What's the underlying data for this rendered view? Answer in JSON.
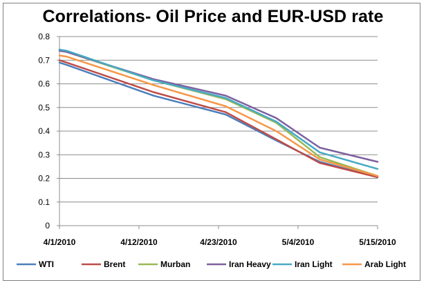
{
  "chart_data": {
    "type": "line",
    "title": "Correlations- Oil Price and EUR-USD rate",
    "xlabel": "",
    "ylabel": "",
    "ylim": [
      0,
      0.8
    ],
    "yticks": [
      "0",
      "0.1",
      "0.2",
      "0.3",
      "0.4",
      "0.5",
      "0.6",
      "0.7",
      "0.8"
    ],
    "x": [
      "2010-04-01",
      "2010-04-02",
      "2010-04-14",
      "2010-04-24",
      "2010-05-01",
      "2010-05-07",
      "2010-05-15"
    ],
    "xlim": [
      "2010-04-01",
      "2010-05-15"
    ],
    "xticks": [
      "4/1/2010",
      "4/12/2010",
      "4/23/2010",
      "5/4/2010",
      "5/15/2010"
    ],
    "grid": "horizontal",
    "legend_position": "bottom",
    "series": [
      {
        "name": "WTI",
        "color": "#4a7ebb",
        "values": [
          0.69,
          0.68,
          0.55,
          0.47,
          0.36,
          0.27,
          0.205
        ]
      },
      {
        "name": "Brent",
        "color": "#be4b48",
        "values": [
          0.7,
          0.69,
          0.565,
          0.48,
          0.365,
          0.265,
          0.205
        ]
      },
      {
        "name": "Murban",
        "color": "#98b954",
        "values": [
          0.745,
          0.735,
          0.615,
          0.535,
          0.435,
          0.29,
          0.21
        ]
      },
      {
        "name": "Iran Heavy",
        "color": "#7d60a0",
        "values": [
          0.74,
          0.735,
          0.62,
          0.55,
          0.455,
          0.33,
          0.27
        ]
      },
      {
        "name": "Iran Light",
        "color": "#46aac5",
        "values": [
          0.745,
          0.74,
          0.615,
          0.54,
          0.44,
          0.31,
          0.24
        ]
      },
      {
        "name": "Arab Light",
        "color": "#f79646",
        "values": [
          0.72,
          0.715,
          0.595,
          0.505,
          0.4,
          0.28,
          0.21
        ]
      }
    ]
  }
}
